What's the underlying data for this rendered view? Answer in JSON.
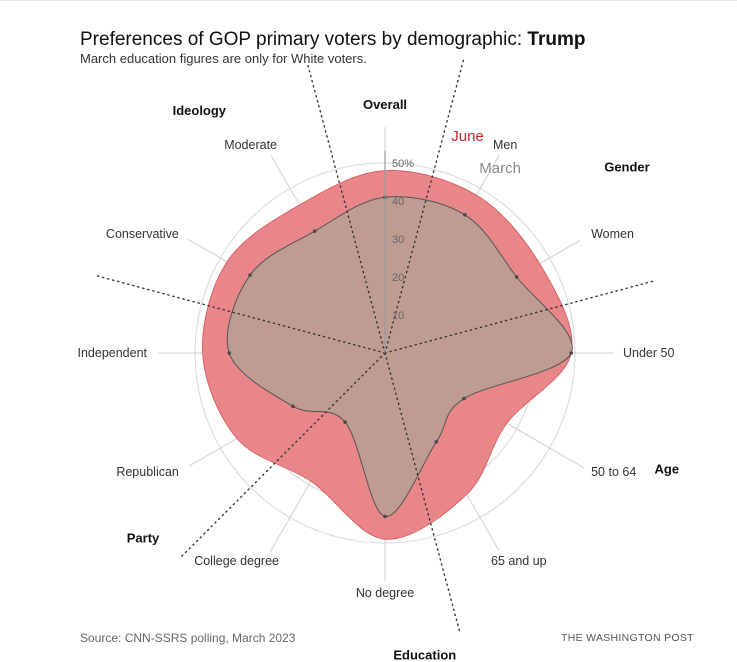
{
  "header": {
    "title_prefix": "Preferences of GOP primary voters by demographic: ",
    "title_strong": "Trump",
    "subtitle": "March education figures are only for White voters."
  },
  "footer": {
    "source": "Source: CNN-SSRS polling, March 2023",
    "credit": "THE WASHINGTON POST"
  },
  "chart_data": {
    "type": "radar",
    "title": "Preferences of GOP primary voters by demographic: Trump",
    "subtitle": "March education figures are only for White voters.",
    "radial_axis": {
      "min": 0,
      "max": 50,
      "ticks": [
        10,
        20,
        30,
        40,
        50
      ],
      "tick_labels": [
        "10",
        "20",
        "30",
        "40",
        "50%"
      ]
    },
    "categories": [
      "Overall",
      "Men",
      "Women",
      "Under 50",
      "50 to 64",
      "65 and up",
      "No degree",
      "College degree",
      "Republican",
      "Independent",
      "Conservative",
      "Moderate"
    ],
    "groups": [
      {
        "name": "Gender",
        "categories": [
          "Men",
          "Women"
        ]
      },
      {
        "name": "Age",
        "categories": [
          "Under 50",
          "50 to 64",
          "65 and up"
        ]
      },
      {
        "name": "Education",
        "categories": [
          "No degree",
          "College degree"
        ]
      },
      {
        "name": "Party",
        "categories": [
          "Republican",
          "Independent"
        ]
      },
      {
        "name": "Ideology",
        "categories": [
          "Conservative",
          "Moderate"
        ]
      }
    ],
    "series": [
      {
        "name": "June",
        "color": "#e8868a",
        "values": [
          48,
          48,
          47,
          49,
          37,
          43,
          49,
          39,
          45,
          48,
          48,
          45
        ]
      },
      {
        "name": "March",
        "color": "#b7a092",
        "values": [
          41,
          42,
          40,
          49,
          24,
          27,
          43,
          21,
          28,
          41,
          41,
          37
        ]
      }
    ],
    "grid": true
  }
}
